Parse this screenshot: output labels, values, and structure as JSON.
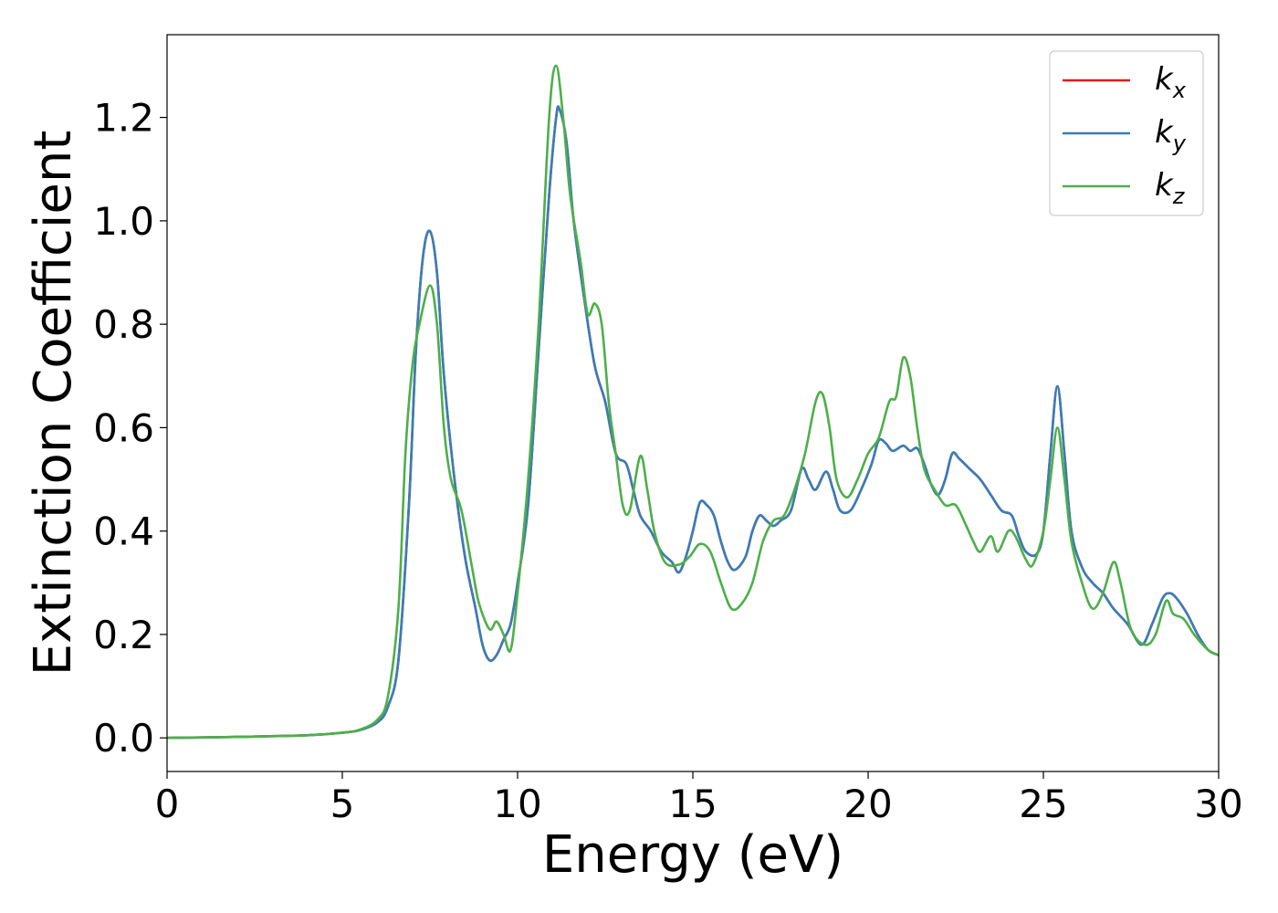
{
  "chart_data": {
    "type": "line",
    "title": "",
    "xlabel": "Energy (eV)",
    "ylabel": "Extinction Coefficient",
    "xlim": [
      0,
      30
    ],
    "ylim": [
      -0.065,
      1.36
    ],
    "xticks": [
      0,
      5,
      10,
      15,
      20,
      25,
      30
    ],
    "xtick_labels": [
      "0",
      "5",
      "10",
      "15",
      "20",
      "25",
      "30"
    ],
    "yticks": [
      0.0,
      0.2,
      0.4,
      0.6,
      0.8,
      1.0,
      1.2
    ],
    "ytick_labels": [
      "0.0",
      "0.2",
      "0.4",
      "0.6",
      "0.8",
      "1.0",
      "1.2"
    ],
    "grid": false,
    "legend": {
      "placement": "top-right",
      "entries": [
        {
          "base": "k",
          "sub": "x",
          "color": "#e41a1c"
        },
        {
          "base": "k",
          "sub": "y",
          "color": "#377eb8"
        },
        {
          "base": "k",
          "sub": "z",
          "color": "#4daf4a"
        }
      ]
    },
    "series": [
      {
        "name": "k_x",
        "color": "#e41a1c",
        "points": [
          [
            0,
            0
          ],
          [
            2,
            0.002
          ],
          [
            4,
            0.005
          ],
          [
            5,
            0.01
          ],
          [
            5.5,
            0.015
          ],
          [
            6,
            0.03
          ],
          [
            6.3,
            0.06
          ],
          [
            6.6,
            0.15
          ],
          [
            6.9,
            0.45
          ],
          [
            7.1,
            0.75
          ],
          [
            7.3,
            0.93
          ],
          [
            7.5,
            0.98
          ],
          [
            7.7,
            0.9
          ],
          [
            7.9,
            0.7
          ],
          [
            8.2,
            0.5
          ],
          [
            8.5,
            0.35
          ],
          [
            8.8,
            0.25
          ],
          [
            9.0,
            0.18
          ],
          [
            9.2,
            0.15
          ],
          [
            9.4,
            0.16
          ],
          [
            9.6,
            0.19
          ],
          [
            9.8,
            0.22
          ],
          [
            10.0,
            0.3
          ],
          [
            10.3,
            0.45
          ],
          [
            10.6,
            0.75
          ],
          [
            10.9,
            1.05
          ],
          [
            11.1,
            1.2
          ],
          [
            11.2,
            1.215
          ],
          [
            11.4,
            1.15
          ],
          [
            11.6,
            1.0
          ],
          [
            11.9,
            0.85
          ],
          [
            12.2,
            0.72
          ],
          [
            12.5,
            0.65
          ],
          [
            12.8,
            0.55
          ],
          [
            13.1,
            0.53
          ],
          [
            13.3,
            0.48
          ],
          [
            13.5,
            0.43
          ],
          [
            13.8,
            0.4
          ],
          [
            14.1,
            0.36
          ],
          [
            14.4,
            0.34
          ],
          [
            14.6,
            0.32
          ],
          [
            14.8,
            0.35
          ],
          [
            15.0,
            0.4
          ],
          [
            15.2,
            0.455
          ],
          [
            15.4,
            0.45
          ],
          [
            15.6,
            0.43
          ],
          [
            15.8,
            0.38
          ],
          [
            16.0,
            0.34
          ],
          [
            16.2,
            0.325
          ],
          [
            16.5,
            0.35
          ],
          [
            16.7,
            0.4
          ],
          [
            16.9,
            0.43
          ],
          [
            17.1,
            0.42
          ],
          [
            17.3,
            0.41
          ],
          [
            17.5,
            0.42
          ],
          [
            17.8,
            0.44
          ],
          [
            18.1,
            0.52
          ],
          [
            18.3,
            0.5
          ],
          [
            18.5,
            0.48
          ],
          [
            18.8,
            0.515
          ],
          [
            19.0,
            0.48
          ],
          [
            19.2,
            0.44
          ],
          [
            19.5,
            0.44
          ],
          [
            19.8,
            0.48
          ],
          [
            20.1,
            0.53
          ],
          [
            20.3,
            0.575
          ],
          [
            20.5,
            0.57
          ],
          [
            20.7,
            0.555
          ],
          [
            21.0,
            0.565
          ],
          [
            21.2,
            0.555
          ],
          [
            21.4,
            0.56
          ],
          [
            21.6,
            0.53
          ],
          [
            21.8,
            0.49
          ],
          [
            22.0,
            0.47
          ],
          [
            22.2,
            0.5
          ],
          [
            22.4,
            0.55
          ],
          [
            22.6,
            0.54
          ],
          [
            22.9,
            0.52
          ],
          [
            23.2,
            0.5
          ],
          [
            23.5,
            0.47
          ],
          [
            23.8,
            0.44
          ],
          [
            24.1,
            0.43
          ],
          [
            24.3,
            0.39
          ],
          [
            24.5,
            0.36
          ],
          [
            24.8,
            0.355
          ],
          [
            25.0,
            0.4
          ],
          [
            25.2,
            0.55
          ],
          [
            25.4,
            0.68
          ],
          [
            25.6,
            0.55
          ],
          [
            25.8,
            0.4
          ],
          [
            26.1,
            0.33
          ],
          [
            26.4,
            0.3
          ],
          [
            26.7,
            0.28
          ],
          [
            27.0,
            0.25
          ],
          [
            27.4,
            0.22
          ],
          [
            27.8,
            0.18
          ],
          [
            28.1,
            0.22
          ],
          [
            28.4,
            0.27
          ],
          [
            28.6,
            0.28
          ],
          [
            28.8,
            0.27
          ],
          [
            29.1,
            0.24
          ],
          [
            29.4,
            0.2
          ],
          [
            29.7,
            0.17
          ],
          [
            30.0,
            0.16
          ]
        ]
      },
      {
        "name": "k_y",
        "color": "#377eb8",
        "points": [
          [
            0,
            0
          ],
          [
            2,
            0.002
          ],
          [
            4,
            0.005
          ],
          [
            5,
            0.01
          ],
          [
            5.5,
            0.015
          ],
          [
            6,
            0.03
          ],
          [
            6.3,
            0.06
          ],
          [
            6.6,
            0.15
          ],
          [
            6.9,
            0.45
          ],
          [
            7.1,
            0.75
          ],
          [
            7.3,
            0.93
          ],
          [
            7.5,
            0.98
          ],
          [
            7.7,
            0.9
          ],
          [
            7.9,
            0.7
          ],
          [
            8.2,
            0.5
          ],
          [
            8.5,
            0.35
          ],
          [
            8.8,
            0.25
          ],
          [
            9.0,
            0.18
          ],
          [
            9.2,
            0.15
          ],
          [
            9.4,
            0.16
          ],
          [
            9.6,
            0.19
          ],
          [
            9.8,
            0.22
          ],
          [
            10.0,
            0.3
          ],
          [
            10.3,
            0.45
          ],
          [
            10.6,
            0.75
          ],
          [
            10.9,
            1.05
          ],
          [
            11.1,
            1.2
          ],
          [
            11.2,
            1.215
          ],
          [
            11.4,
            1.15
          ],
          [
            11.6,
            1.0
          ],
          [
            11.9,
            0.85
          ],
          [
            12.2,
            0.72
          ],
          [
            12.5,
            0.65
          ],
          [
            12.8,
            0.55
          ],
          [
            13.1,
            0.53
          ],
          [
            13.3,
            0.48
          ],
          [
            13.5,
            0.43
          ],
          [
            13.8,
            0.4
          ],
          [
            14.1,
            0.36
          ],
          [
            14.4,
            0.34
          ],
          [
            14.6,
            0.32
          ],
          [
            14.8,
            0.35
          ],
          [
            15.0,
            0.4
          ],
          [
            15.2,
            0.455
          ],
          [
            15.4,
            0.45
          ],
          [
            15.6,
            0.43
          ],
          [
            15.8,
            0.38
          ],
          [
            16.0,
            0.34
          ],
          [
            16.2,
            0.325
          ],
          [
            16.5,
            0.35
          ],
          [
            16.7,
            0.4
          ],
          [
            16.9,
            0.43
          ],
          [
            17.1,
            0.42
          ],
          [
            17.3,
            0.41
          ],
          [
            17.5,
            0.42
          ],
          [
            17.8,
            0.44
          ],
          [
            18.1,
            0.52
          ],
          [
            18.3,
            0.5
          ],
          [
            18.5,
            0.48
          ],
          [
            18.8,
            0.515
          ],
          [
            19.0,
            0.48
          ],
          [
            19.2,
            0.44
          ],
          [
            19.5,
            0.44
          ],
          [
            19.8,
            0.48
          ],
          [
            20.1,
            0.53
          ],
          [
            20.3,
            0.575
          ],
          [
            20.5,
            0.57
          ],
          [
            20.7,
            0.555
          ],
          [
            21.0,
            0.565
          ],
          [
            21.2,
            0.555
          ],
          [
            21.4,
            0.56
          ],
          [
            21.6,
            0.53
          ],
          [
            21.8,
            0.49
          ],
          [
            22.0,
            0.47
          ],
          [
            22.2,
            0.5
          ],
          [
            22.4,
            0.55
          ],
          [
            22.6,
            0.54
          ],
          [
            22.9,
            0.52
          ],
          [
            23.2,
            0.5
          ],
          [
            23.5,
            0.47
          ],
          [
            23.8,
            0.44
          ],
          [
            24.1,
            0.43
          ],
          [
            24.3,
            0.39
          ],
          [
            24.5,
            0.36
          ],
          [
            24.8,
            0.355
          ],
          [
            25.0,
            0.4
          ],
          [
            25.2,
            0.55
          ],
          [
            25.4,
            0.68
          ],
          [
            25.6,
            0.55
          ],
          [
            25.8,
            0.4
          ],
          [
            26.1,
            0.33
          ],
          [
            26.4,
            0.3
          ],
          [
            26.7,
            0.28
          ],
          [
            27.0,
            0.25
          ],
          [
            27.4,
            0.22
          ],
          [
            27.8,
            0.18
          ],
          [
            28.1,
            0.22
          ],
          [
            28.4,
            0.27
          ],
          [
            28.6,
            0.28
          ],
          [
            28.8,
            0.27
          ],
          [
            29.1,
            0.24
          ],
          [
            29.4,
            0.2
          ],
          [
            29.7,
            0.17
          ],
          [
            30.0,
            0.16
          ]
        ]
      },
      {
        "name": "k_z",
        "color": "#4daf4a",
        "points": [
          [
            0,
            0
          ],
          [
            2,
            0.002
          ],
          [
            4,
            0.005
          ],
          [
            5,
            0.01
          ],
          [
            5.5,
            0.016
          ],
          [
            6,
            0.035
          ],
          [
            6.3,
            0.08
          ],
          [
            6.6,
            0.25
          ],
          [
            6.8,
            0.55
          ],
          [
            7.0,
            0.72
          ],
          [
            7.2,
            0.8
          ],
          [
            7.5,
            0.875
          ],
          [
            7.7,
            0.8
          ],
          [
            7.9,
            0.6
          ],
          [
            8.1,
            0.5
          ],
          [
            8.4,
            0.44
          ],
          [
            8.7,
            0.33
          ],
          [
            8.9,
            0.26
          ],
          [
            9.2,
            0.21
          ],
          [
            9.4,
            0.225
          ],
          [
            9.6,
            0.2
          ],
          [
            9.8,
            0.17
          ],
          [
            10.0,
            0.28
          ],
          [
            10.3,
            0.5
          ],
          [
            10.6,
            0.8
          ],
          [
            10.9,
            1.2
          ],
          [
            11.1,
            1.3
          ],
          [
            11.3,
            1.2
          ],
          [
            11.5,
            1.05
          ],
          [
            11.8,
            0.92
          ],
          [
            12.0,
            0.82
          ],
          [
            12.2,
            0.84
          ],
          [
            12.4,
            0.8
          ],
          [
            12.6,
            0.65
          ],
          [
            12.8,
            0.55
          ],
          [
            13.0,
            0.45
          ],
          [
            13.2,
            0.44
          ],
          [
            13.5,
            0.545
          ],
          [
            13.7,
            0.48
          ],
          [
            13.9,
            0.4
          ],
          [
            14.2,
            0.34
          ],
          [
            14.6,
            0.335
          ],
          [
            14.9,
            0.35
          ],
          [
            15.2,
            0.375
          ],
          [
            15.5,
            0.36
          ],
          [
            15.8,
            0.3
          ],
          [
            16.1,
            0.25
          ],
          [
            16.4,
            0.26
          ],
          [
            16.7,
            0.3
          ],
          [
            17.0,
            0.38
          ],
          [
            17.3,
            0.42
          ],
          [
            17.6,
            0.43
          ],
          [
            17.9,
            0.48
          ],
          [
            18.2,
            0.55
          ],
          [
            18.5,
            0.65
          ],
          [
            18.7,
            0.665
          ],
          [
            18.9,
            0.6
          ],
          [
            19.1,
            0.5
          ],
          [
            19.4,
            0.465
          ],
          [
            19.7,
            0.5
          ],
          [
            20.0,
            0.55
          ],
          [
            20.3,
            0.58
          ],
          [
            20.6,
            0.65
          ],
          [
            20.8,
            0.66
          ],
          [
            21.0,
            0.735
          ],
          [
            21.2,
            0.7
          ],
          [
            21.4,
            0.6
          ],
          [
            21.6,
            0.52
          ],
          [
            21.9,
            0.48
          ],
          [
            22.2,
            0.45
          ],
          [
            22.5,
            0.45
          ],
          [
            22.8,
            0.41
          ],
          [
            23.0,
            0.38
          ],
          [
            23.2,
            0.36
          ],
          [
            23.5,
            0.39
          ],
          [
            23.7,
            0.36
          ],
          [
            24.0,
            0.4
          ],
          [
            24.2,
            0.39
          ],
          [
            24.5,
            0.345
          ],
          [
            24.7,
            0.335
          ],
          [
            25.0,
            0.4
          ],
          [
            25.2,
            0.5
          ],
          [
            25.4,
            0.6
          ],
          [
            25.6,
            0.5
          ],
          [
            25.8,
            0.38
          ],
          [
            26.1,
            0.3
          ],
          [
            26.4,
            0.25
          ],
          [
            26.7,
            0.28
          ],
          [
            27.0,
            0.34
          ],
          [
            27.2,
            0.3
          ],
          [
            27.5,
            0.21
          ],
          [
            27.9,
            0.18
          ],
          [
            28.2,
            0.2
          ],
          [
            28.5,
            0.265
          ],
          [
            28.7,
            0.24
          ],
          [
            29.0,
            0.23
          ],
          [
            29.3,
            0.2
          ],
          [
            29.7,
            0.17
          ],
          [
            30.0,
            0.16
          ]
        ]
      }
    ]
  }
}
